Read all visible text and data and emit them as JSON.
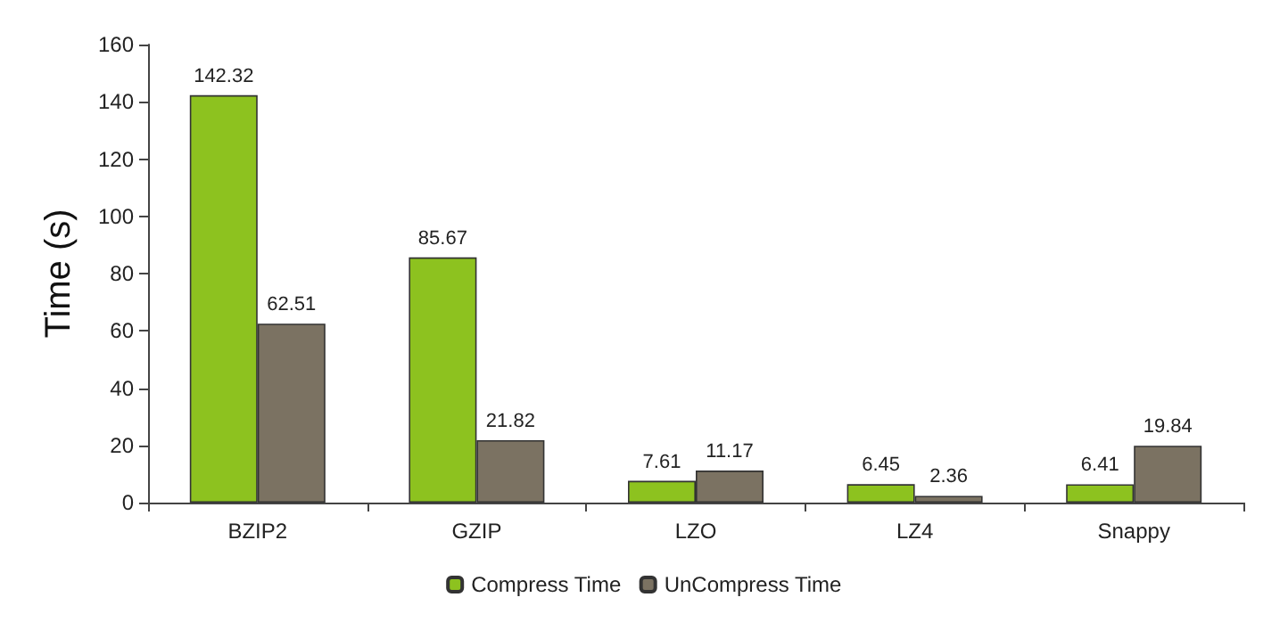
{
  "chart_data": {
    "type": "bar",
    "ylabel": "Time (s)",
    "categories": [
      "BZIP2",
      "GZIP",
      "LZO",
      "LZ4",
      "Snappy"
    ],
    "series": [
      {
        "name": "Compress Time",
        "color": "#8dc21f",
        "values": [
          142.32,
          85.67,
          7.61,
          6.45,
          6.41
        ]
      },
      {
        "name": "UnCompress Time",
        "color": "#7b7262",
        "values": [
          62.51,
          21.82,
          11.17,
          2.36,
          19.84
        ]
      }
    ],
    "ylim": [
      0,
      160
    ],
    "yticks": [
      0,
      20,
      40,
      60,
      80,
      100,
      120,
      140,
      160
    ],
    "grid": false,
    "legend": "bottom",
    "data_labels": true
  }
}
